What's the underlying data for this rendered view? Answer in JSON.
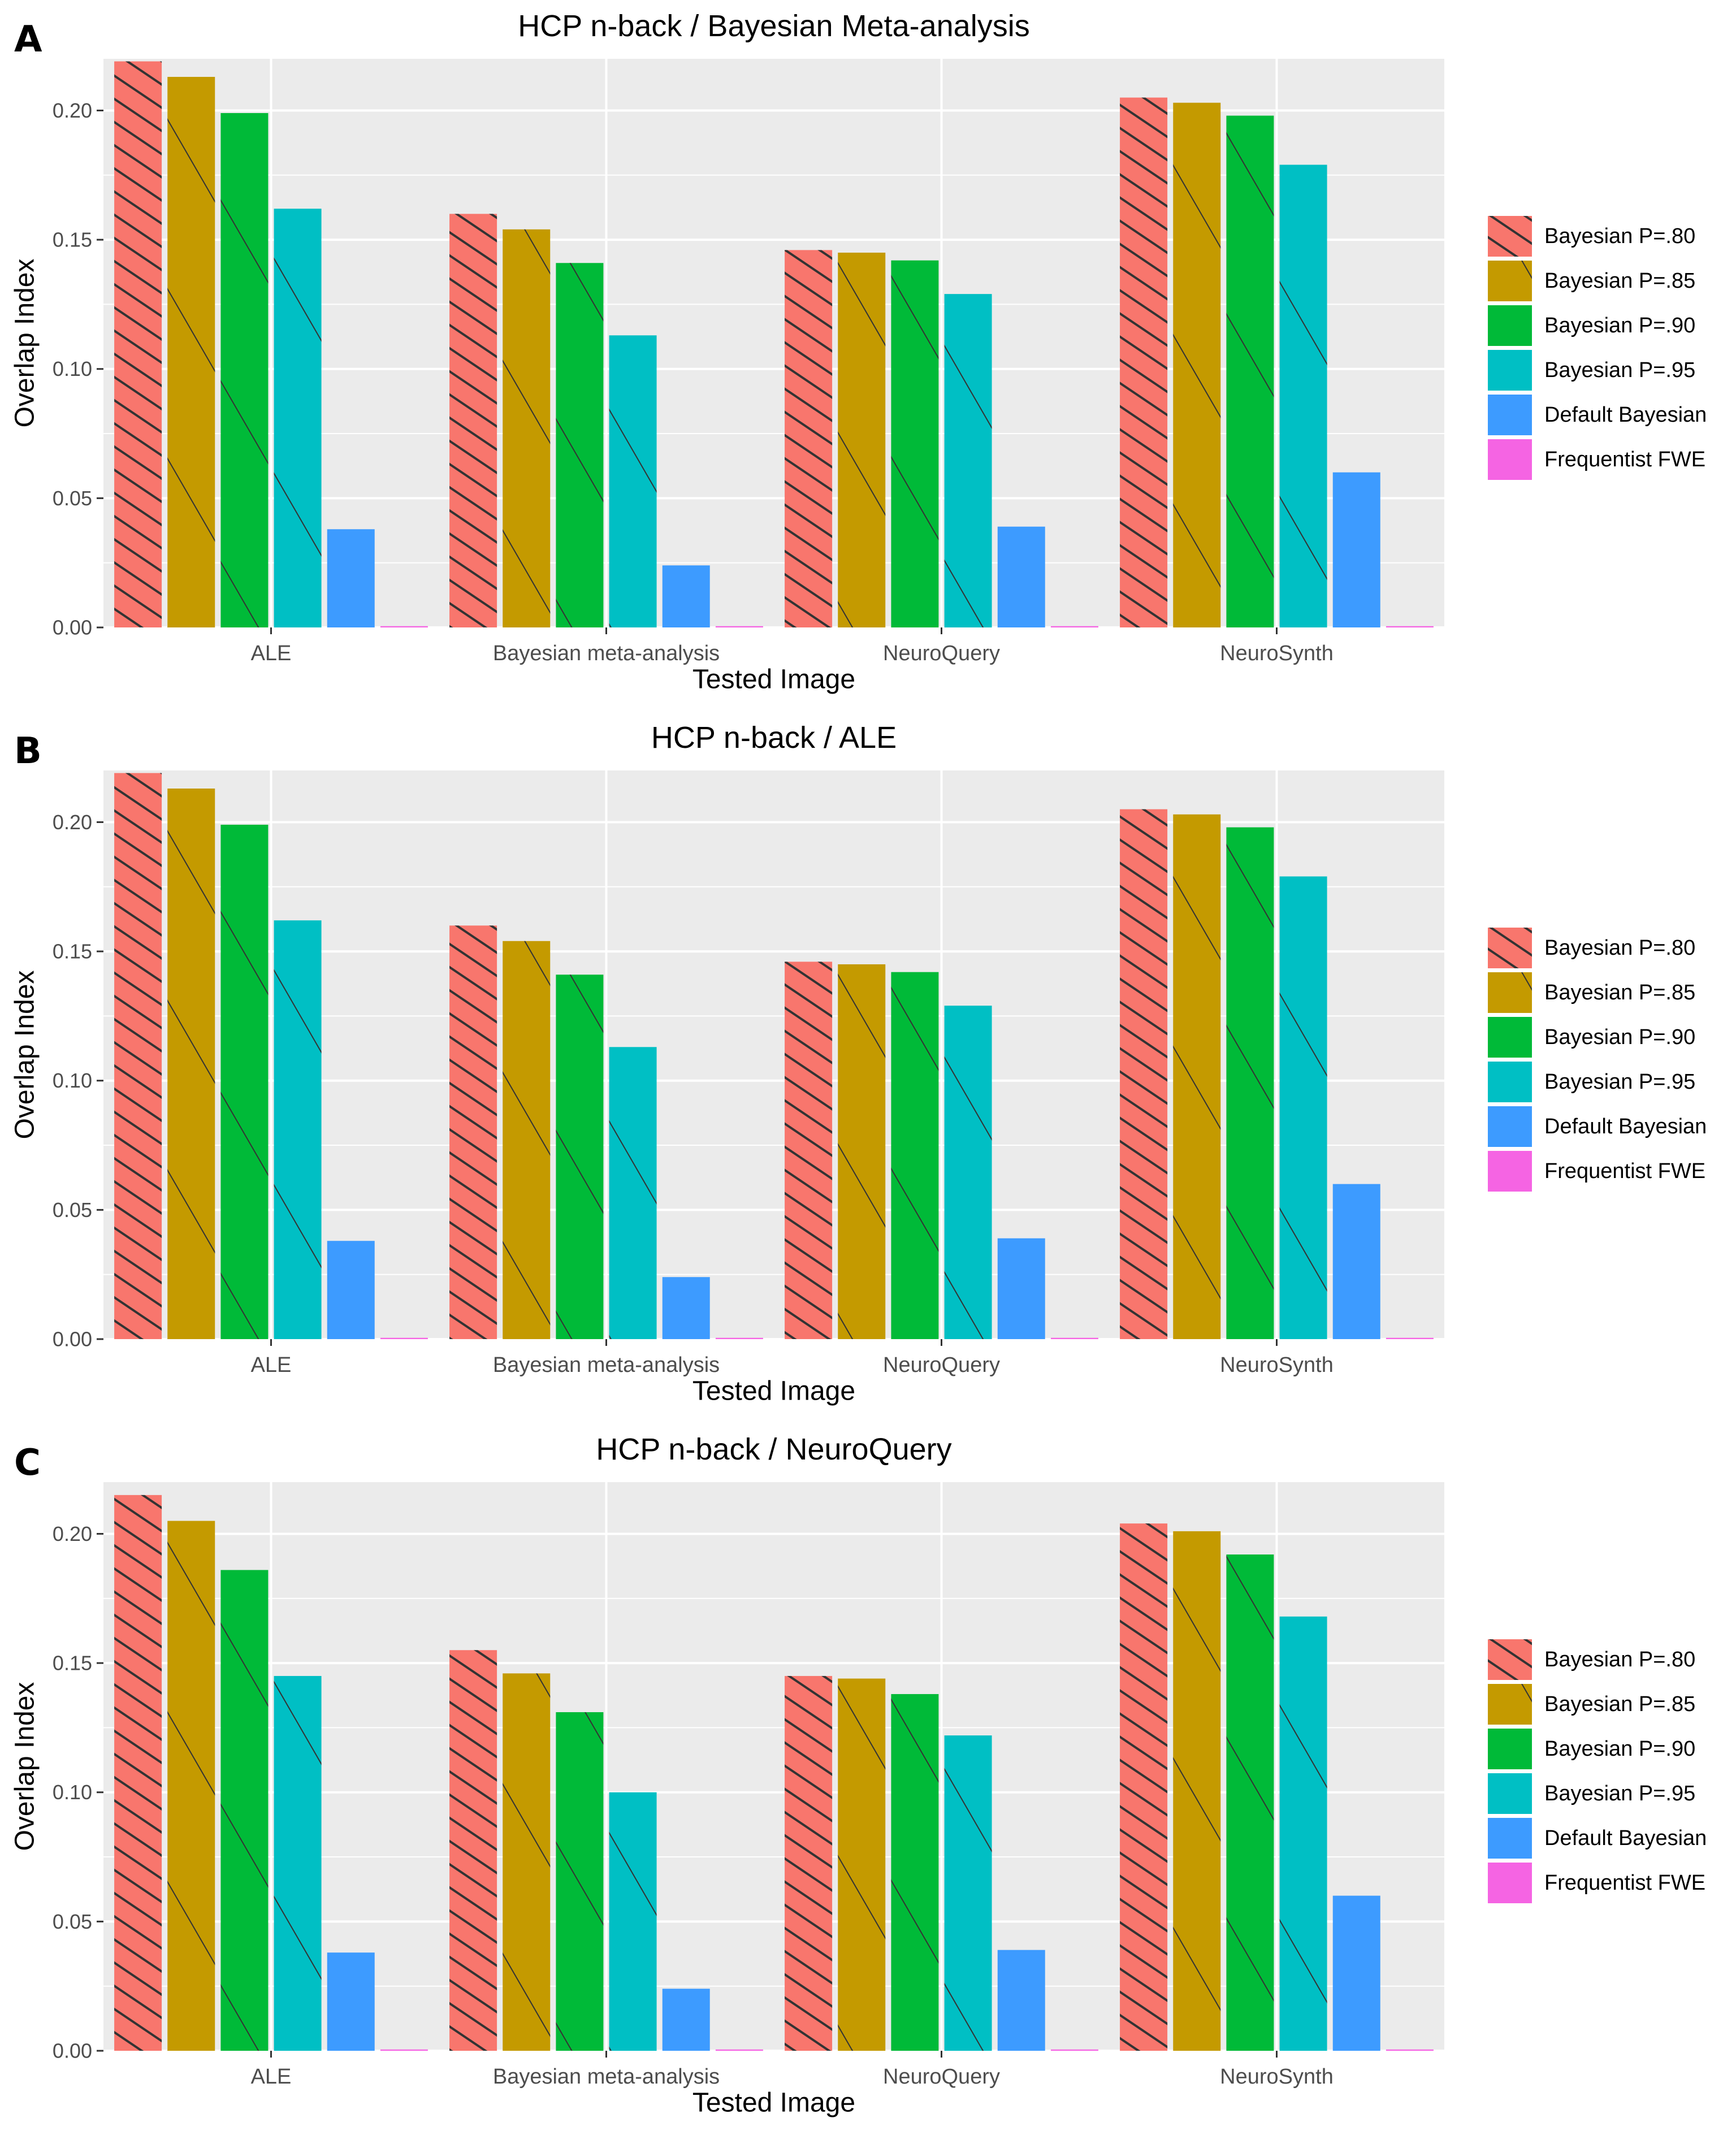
{
  "colors": {
    "panel_bg": "#EBEBEB",
    "grid": "#FFFFFF",
    "text": "#000000",
    "tick_text": "#4D4D4D",
    "series": [
      "#F8766D",
      "#C49A00",
      "#00BA38",
      "#00BFC4",
      "#3D9BFF",
      "#F564E3"
    ]
  },
  "chart_data": [
    {
      "type": "bar",
      "panel_label": "A",
      "title": "HCP n-back / Bayesian Meta-analysis",
      "xlabel": "Tested Image",
      "ylabel": "Overlap Index",
      "ylim": [
        0,
        0.22
      ],
      "yticks": [
        "0.00",
        "0.05",
        "0.10",
        "0.15",
        "0.20"
      ],
      "grid": true,
      "legend_position": "right",
      "categories": [
        "ALE",
        "Bayesian meta-analysis",
        "NeuroQuery",
        "NeuroSynth"
      ],
      "series": [
        {
          "name": "Bayesian P=.80",
          "values": [
            0.219,
            0.16,
            0.146,
            0.205
          ]
        },
        {
          "name": "Bayesian P=.85",
          "values": [
            0.213,
            0.154,
            0.145,
            0.203
          ]
        },
        {
          "name": "Bayesian P=.90",
          "values": [
            0.199,
            0.141,
            0.142,
            0.198
          ]
        },
        {
          "name": "Bayesian P=.95",
          "values": [
            0.162,
            0.113,
            0.129,
            0.179
          ]
        },
        {
          "name": "Default Bayesian",
          "values": [
            0.038,
            0.024,
            0.039,
            0.06
          ]
        },
        {
          "name": "Frequentist FWE",
          "values": [
            0.0005,
            0.0005,
            0.0005,
            0.0005
          ]
        }
      ]
    },
    {
      "type": "bar",
      "panel_label": "B",
      "title": "HCP n-back / ALE",
      "xlabel": "Tested Image",
      "ylabel": "Overlap Index",
      "ylim": [
        0,
        0.22
      ],
      "yticks": [
        "0.00",
        "0.05",
        "0.10",
        "0.15",
        "0.20"
      ],
      "grid": true,
      "legend_position": "right",
      "categories": [
        "ALE",
        "Bayesian meta-analysis",
        "NeuroQuery",
        "NeuroSynth"
      ],
      "series": [
        {
          "name": "Bayesian P=.80",
          "values": [
            0.219,
            0.16,
            0.146,
            0.205
          ]
        },
        {
          "name": "Bayesian P=.85",
          "values": [
            0.213,
            0.154,
            0.145,
            0.203
          ]
        },
        {
          "name": "Bayesian P=.90",
          "values": [
            0.199,
            0.141,
            0.142,
            0.198
          ]
        },
        {
          "name": "Bayesian P=.95",
          "values": [
            0.162,
            0.113,
            0.129,
            0.179
          ]
        },
        {
          "name": "Default Bayesian",
          "values": [
            0.038,
            0.024,
            0.039,
            0.06
          ]
        },
        {
          "name": "Frequentist FWE",
          "values": [
            0.0005,
            0.0005,
            0.0005,
            0.0005
          ]
        }
      ]
    },
    {
      "type": "bar",
      "panel_label": "C",
      "title": "HCP n-back / NeuroQuery",
      "xlabel": "Tested Image",
      "ylabel": "Overlap Index",
      "ylim": [
        0,
        0.22
      ],
      "yticks": [
        "0.00",
        "0.05",
        "0.10",
        "0.15",
        "0.20"
      ],
      "grid": true,
      "legend_position": "right",
      "categories": [
        "ALE",
        "Bayesian meta-analysis",
        "NeuroQuery",
        "NeuroSynth"
      ],
      "series": [
        {
          "name": "Bayesian P=.80",
          "values": [
            0.215,
            0.155,
            0.145,
            0.204
          ]
        },
        {
          "name": "Bayesian P=.85",
          "values": [
            0.205,
            0.146,
            0.144,
            0.201
          ]
        },
        {
          "name": "Bayesian P=.90",
          "values": [
            0.186,
            0.131,
            0.138,
            0.192
          ]
        },
        {
          "name": "Bayesian P=.95",
          "values": [
            0.145,
            0.1,
            0.122,
            0.168
          ]
        },
        {
          "name": "Default Bayesian",
          "values": [
            0.038,
            0.024,
            0.039,
            0.06
          ]
        },
        {
          "name": "Frequentist FWE",
          "values": [
            0.0005,
            0.0005,
            0.0005,
            0.0005
          ]
        }
      ]
    }
  ]
}
